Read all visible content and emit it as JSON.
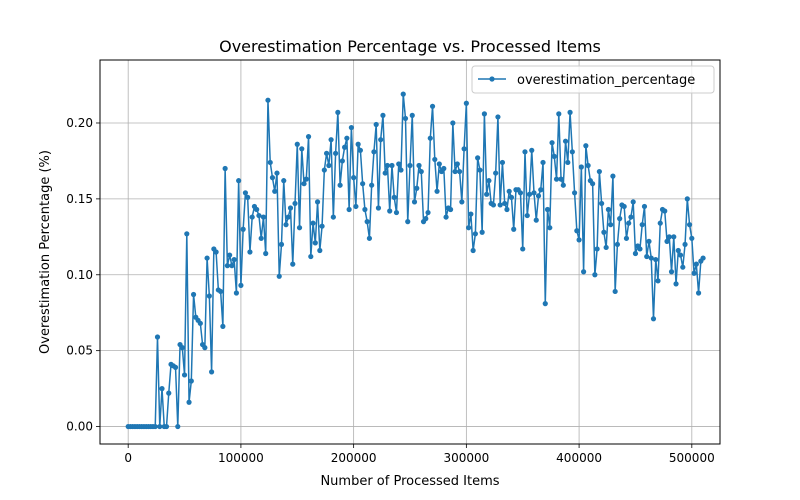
{
  "chart_data": {
    "type": "line",
    "title": "Overestimation Percentage vs. Processed Items",
    "xlabel": "Number of Processed Items",
    "ylabel": "Overestimation Percentage (%)",
    "xlim": [
      -25000,
      525000
    ],
    "ylim": [
      -0.0115,
      0.2415
    ],
    "grid": true,
    "legend_position": "top-right",
    "x_ticks": [
      0,
      100000,
      200000,
      300000,
      400000,
      500000
    ],
    "x_tick_labels": [
      "0",
      "100000",
      "200000",
      "300000",
      "400000",
      "500000"
    ],
    "y_ticks": [
      0.0,
      0.05,
      0.1,
      0.15,
      0.2
    ],
    "y_tick_labels": [
      "0.00",
      "0.05",
      "0.10",
      "0.15",
      "0.20"
    ],
    "series": [
      {
        "name": "overestimation_percentage",
        "color": "#1f77b4",
        "marker": "circle",
        "x_start": 0,
        "x_step": 2000,
        "values": [
          0,
          0,
          0,
          0,
          0,
          0,
          0,
          0,
          0,
          0,
          0,
          0,
          0,
          0.059,
          0,
          0.025,
          0,
          0,
          0.022,
          0.041,
          0.04,
          0.039,
          0,
          0.054,
          0.052,
          0.034,
          0.127,
          0.016,
          0.03,
          0.087,
          0.072,
          0.07,
          0.068,
          0.054,
          0.052,
          0.111,
          0.086,
          0.036,
          0.117,
          0.115,
          0.09,
          0.089,
          0.066,
          0.17,
          0.106,
          0.113,
          0.106,
          0.11,
          0.088,
          0.162,
          0.093,
          0.13,
          0.154,
          0.151,
          0.115,
          0.138,
          0.145,
          0.143,
          0.139,
          0.124,
          0.138,
          0.114,
          0.215,
          0.174,
          0.164,
          0.155,
          0.167,
          0.099,
          0.12,
          0.162,
          0.133,
          0.138,
          0.144,
          0.107,
          0.147,
          0.186,
          0.131,
          0.183,
          0.16,
          0.163,
          0.191,
          0.112,
          0.134,
          0.121,
          0.148,
          0.116,
          0.132,
          0.169,
          0.18,
          0.172,
          0.189,
          0.138,
          0.18,
          0.207,
          0.159,
          0.175,
          0.184,
          0.19,
          0.143,
          0.197,
          0.164,
          0.145,
          0.186,
          0.182,
          0.16,
          0.143,
          0.135,
          0.124,
          0.159,
          0.181,
          0.199,
          0.144,
          0.189,
          0.205,
          0.167,
          0.172,
          0.142,
          0.172,
          0.151,
          0.141,
          0.173,
          0.169,
          0.219,
          0.203,
          0.135,
          0.172,
          0.205,
          0.148,
          0.157,
          0.172,
          0.168,
          0.135,
          0.137,
          0.141,
          0.19,
          0.211,
          0.176,
          0.155,
          0.173,
          0.168,
          0.17,
          0.138,
          0.144,
          0.143,
          0.2,
          0.168,
          0.173,
          0.168,
          0.148,
          0.183,
          0.213,
          0.131,
          0.14,
          0.116,
          0.127,
          0.177,
          0.169,
          0.128,
          0.206,
          0.153,
          0.162,
          0.147,
          0.146,
          0.167,
          0.204,
          0.146,
          0.174,
          0.147,
          0.143,
          0.155,
          0.151,
          0.13,
          0.156,
          0.156,
          0.154,
          0.117,
          0.181,
          0.139,
          0.153,
          0.182,
          0.154,
          0.136,
          0.152,
          0.156,
          0.174,
          0.081,
          0.143,
          0.131,
          0.187,
          0.178,
          0.163,
          0.206,
          0.163,
          0.159,
          0.188,
          0.174,
          0.207,
          0.181,
          0.154,
          0.129,
          0.123,
          0.171,
          0.102,
          0.185,
          0.172,
          0.162,
          0.16,
          0.1,
          0.117,
          0.168,
          0.147,
          0.128,
          0.118,
          0.143,
          0.133,
          0.165,
          0.089,
          0.12,
          0.137,
          0.146,
          0.145,
          0.124,
          0.134,
          0.138,
          0.148,
          0.114,
          0.119,
          0.117,
          0.133,
          0.145,
          0.112,
          0.122,
          0.111,
          0.071,
          0.11,
          0.096,
          0.134,
          0.143,
          0.142,
          0.122,
          0.125,
          0.102,
          0.125,
          0.094,
          0.116,
          0.113,
          0.105,
          0.12,
          0.15,
          0.133,
          0.124,
          0.101,
          0.107,
          0.088,
          0.109,
          0.111
        ]
      }
    ]
  }
}
